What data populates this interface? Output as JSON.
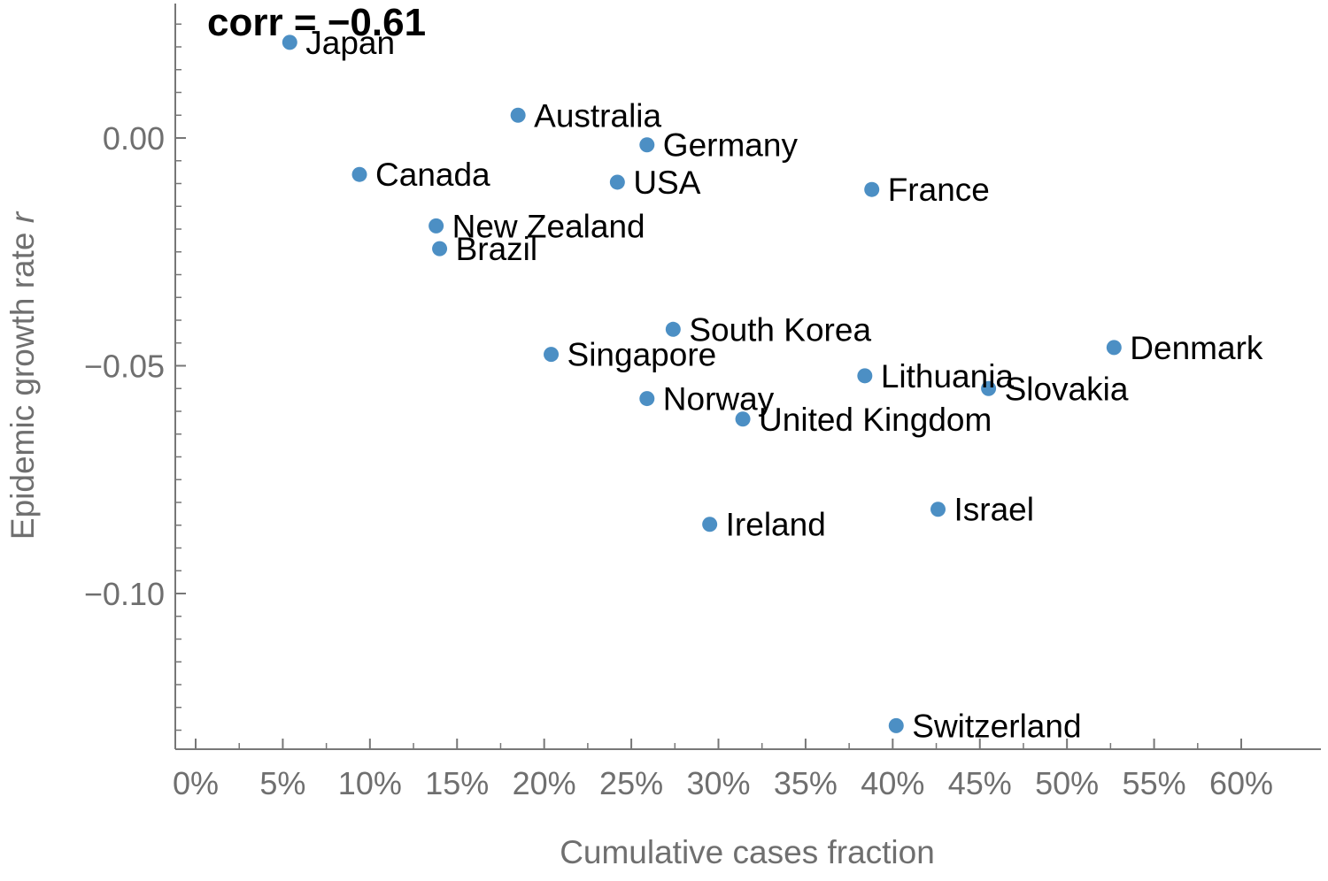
{
  "chart_data": {
    "type": "scatter",
    "xlabel": "Cumulative cases fraction",
    "ylabel_main": "Epidemic growth rate ",
    "ylabel_symbol": "r",
    "annotation": "corr = −0.61",
    "x_ticks": [
      "0%",
      "5%",
      "10%",
      "15%",
      "20%",
      "25%",
      "30%",
      "35%",
      "40%",
      "45%",
      "50%",
      "55%",
      "60%"
    ],
    "y_ticks": [
      "0.00",
      "−0.05",
      "−0.10"
    ],
    "xlim": [
      -0.012,
      0.65
    ],
    "ylim": [
      -0.134,
      0.03
    ],
    "grid": false,
    "point_color": "#4c8fc4",
    "points": [
      {
        "label": "Japan",
        "x": 0.054,
        "y": 0.021
      },
      {
        "label": "Australia",
        "x": 0.185,
        "y": 0.005
      },
      {
        "label": "Germany",
        "x": 0.259,
        "y": -0.0015
      },
      {
        "label": "Canada",
        "x": 0.094,
        "y": -0.008
      },
      {
        "label": "USA",
        "x": 0.242,
        "y": -0.0097
      },
      {
        "label": "France",
        "x": 0.388,
        "y": -0.0113
      },
      {
        "label": "New Zealand",
        "x": 0.138,
        "y": -0.0193
      },
      {
        "label": "Brazil",
        "x": 0.14,
        "y": -0.0243
      },
      {
        "label": "South Korea",
        "x": 0.274,
        "y": -0.042
      },
      {
        "label": "Singapore",
        "x": 0.204,
        "y": -0.0475
      },
      {
        "label": "Denmark",
        "x": 0.527,
        "y": -0.046
      },
      {
        "label": "Lithuania",
        "x": 0.384,
        "y": -0.0522
      },
      {
        "label": "Slovakia",
        "x": 0.455,
        "y": -0.055
      },
      {
        "label": "Norway",
        "x": 0.259,
        "y": -0.0572
      },
      {
        "label": "United Kingdom",
        "x": 0.314,
        "y": -0.0617
      },
      {
        "label": "Israel",
        "x": 0.426,
        "y": -0.0815
      },
      {
        "label": "Ireland",
        "x": 0.295,
        "y": -0.0848
      },
      {
        "label": "Switzerland",
        "x": 0.402,
        "y": -0.129
      }
    ]
  }
}
